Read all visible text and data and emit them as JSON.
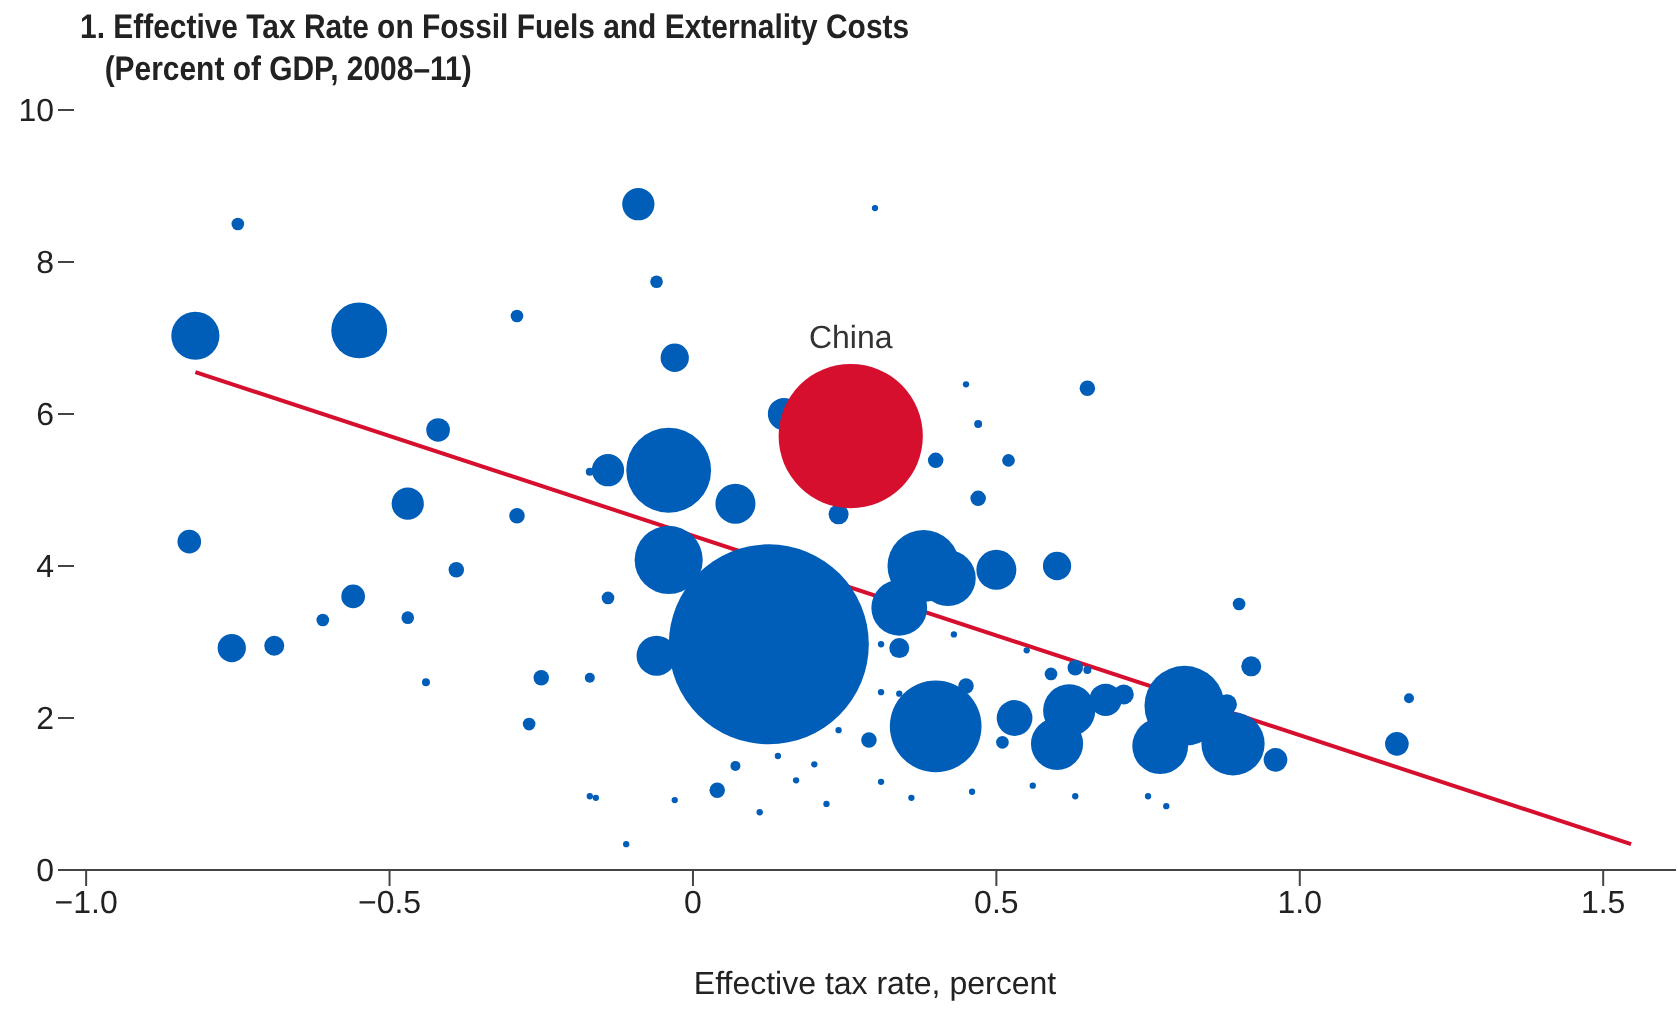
{
  "chart_data": {
    "type": "bubble",
    "title": "1. Effective Tax Rate on Fossil Fuels and Externality Costs",
    "subtitle": "(Percent of GDP, 2008–11)",
    "xlabel": "Effective tax rate, percent",
    "xlim": [
      -1.02,
      1.62
    ],
    "xticks": [
      {
        "value": -1,
        "label": "−1.0"
      },
      {
        "value": -0.5,
        "label": "−0.5"
      },
      0,
      0.5,
      {
        "value": 1,
        "label": "1.0"
      },
      1.5
    ],
    "ylim": [
      0,
      10
    ],
    "yticks": [
      0,
      2,
      4,
      6,
      8,
      10
    ],
    "grid": false,
    "legend": false,
    "series": [
      {
        "color": "#005eb8",
        "x": [
          -0.82,
          -0.55,
          -0.75,
          -0.09,
          -0.06,
          -0.29,
          -0.42,
          -0.17,
          -0.14,
          -0.47,
          -0.29,
          -0.83,
          -0.39,
          -0.14,
          -0.56,
          -0.61,
          -0.47,
          -0.76,
          -0.69,
          -0.44,
          -0.25,
          -0.17,
          -0.27,
          -0.17,
          -0.16,
          -0.11,
          -0.03,
          -0.04,
          0.07,
          0.15,
          0.24,
          -0.04,
          0.125,
          -0.06,
          0.38,
          0.42,
          0.34,
          0.34,
          0.5,
          0.6,
          0.4,
          0.45,
          0.53,
          0.51,
          0.62,
          0.6,
          0.59,
          0.63,
          0.68,
          0.65,
          0.45,
          0.47,
          0.52,
          0.4,
          0.47,
          0.3,
          0.29,
          0.04,
          0.07,
          0.14,
          0.17,
          0.11,
          0.2,
          0.22,
          0.31,
          0.36,
          0.46,
          0.56,
          0.63,
          -0.03,
          0.24,
          0.31,
          0.43,
          0.31,
          0.55,
          0.34,
          0.81,
          0.77,
          0.89,
          0.88,
          0.96,
          0.92,
          0.9,
          1.16,
          1.18,
          0.71,
          0.65,
          0.75,
          0.78
        ],
        "values": [
          7.03,
          7.1,
          8.5,
          8.76,
          7.74,
          7.29,
          5.79,
          5.24,
          5.26,
          4.82,
          4.66,
          4.32,
          3.95,
          3.58,
          3.6,
          3.29,
          3.32,
          2.92,
          2.95,
          2.47,
          2.53,
          2.53,
          1.92,
          0.97,
          0.95,
          0.34,
          6.74,
          5.26,
          4.82,
          6.0,
          4.68,
          4.08,
          2.97,
          2.82,
          4.0,
          3.84,
          3.45,
          2.92,
          3.95,
          4.0,
          1.89,
          2.42,
          2.0,
          1.68,
          2.1,
          1.66,
          2.58,
          2.66,
          2.24,
          6.34,
          6.39,
          5.87,
          5.39,
          5.39,
          4.89,
          8.71,
          1.71,
          1.05,
          1.37,
          1.5,
          1.18,
          0.76,
          1.39,
          0.87,
          1.16,
          0.95,
          1.03,
          1.11,
          0.97,
          0.92,
          1.84,
          2.34,
          3.1,
          2.97,
          2.89,
          2.32,
          2.16,
          1.63,
          1.66,
          2.18,
          1.45,
          2.68,
          3.5,
          1.66,
          2.26,
          2.31,
          2.63,
          0.97,
          0.84
        ],
        "sizes": [
          0.058,
          0.078,
          0.004,
          0.026,
          0.004,
          0.004,
          0.014,
          0.0016,
          0.026,
          0.026,
          0.006,
          0.014,
          0.006,
          0.004,
          0.014,
          0.004,
          0.004,
          0.02,
          0.01,
          0.0016,
          0.006,
          0.0025,
          0.004,
          0.001,
          0.001,
          0.001,
          0.02,
          0.18,
          0.04,
          0.026,
          0.01,
          0.116,
          1,
          0.04,
          0.13,
          0.078,
          0.078,
          0.01,
          0.04,
          0.02,
          0.21,
          0.006,
          0.032,
          0.004,
          0.068,
          0.068,
          0.004,
          0.006,
          0.026,
          0.006,
          0.001,
          0.0016,
          0.004,
          0.006,
          0.006,
          0.001,
          0.006,
          0.006,
          0.0025,
          0.001,
          0.001,
          0.001,
          0.001,
          0.001,
          0.001,
          0.001,
          0.001,
          0.001,
          0.001,
          0.001,
          0.001,
          0.001,
          0.001,
          0.001,
          0.001,
          0.001,
          0.16,
          0.078,
          0.1,
          0.01,
          0.014,
          0.01,
          0.004,
          0.014,
          0.0025,
          0.01,
          0.0016,
          0.001,
          0.001
        ]
      },
      {
        "name": "China",
        "color": "#d50f2d",
        "x": [
          0.26
        ],
        "values": [
          5.71
        ],
        "sizes": [
          0.52
        ]
      },
      {
        "type": "line",
        "color": "#d50f2d",
        "x": [
          -0.82,
          1.546
        ],
        "values": [
          6.55,
          0.34
        ]
      }
    ]
  }
}
